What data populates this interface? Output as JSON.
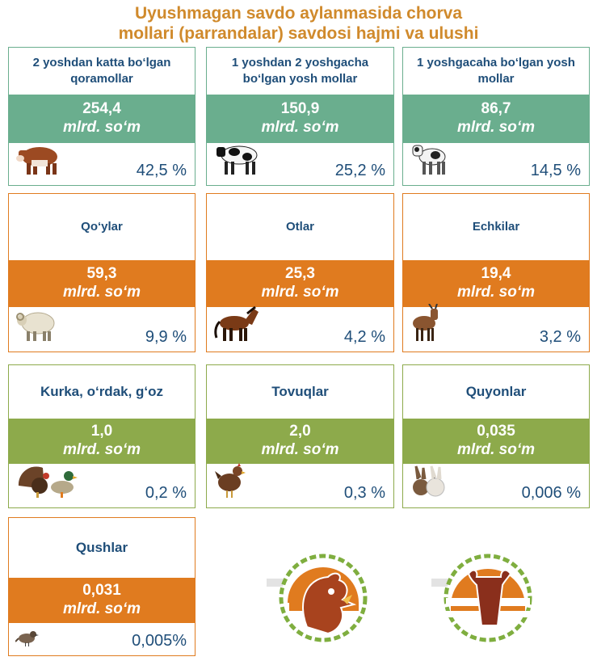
{
  "title_line1": "Uyushmagan savdo aylanmasida chorva",
  "title_line2": "mollari (parrandalar) savdosi hajmi va ulushi",
  "chart_data": {
    "type": "table",
    "unit": "mlrd. so‘m",
    "rows": [
      {
        "label": "2 yoshdan katta bo‘lgan qoramollar",
        "value": "254,4",
        "share": "42,5 %",
        "icon": "bull-icon",
        "color": "#6aae8e"
      },
      {
        "label": "1 yoshdan 2 yoshgacha bo‘lgan yosh mollar",
        "value": "150,9",
        "share": "25,2 %",
        "icon": "cow-icon",
        "color": "#6aae8e"
      },
      {
        "label": "1 yoshgacaha bo‘lgan yosh mollar",
        "value": "86,7",
        "share": "14,5 %",
        "icon": "calf-icon",
        "color": "#6aae8e"
      },
      {
        "label": "Qo‘ylar",
        "value": "59,3",
        "share": "9,9 %",
        "icon": "sheep-icon",
        "color": "#e07b1f"
      },
      {
        "label": "Otlar",
        "value": "25,3",
        "share": "4,2 %",
        "icon": "horse-icon",
        "color": "#e07b1f"
      },
      {
        "label": "Echkilar",
        "value": "19,4",
        "share": "3,2 %",
        "icon": "goat-icon",
        "color": "#e07b1f"
      },
      {
        "label": "Kurka, o‘rdak, g‘oz",
        "value": "1,0",
        "share": "0,2 %",
        "icon": "turkey-duck-icon",
        "color": "#8daa4b"
      },
      {
        "label": "Tovuqlar",
        "value": "2,0",
        "share": "0,3 %",
        "icon": "hen-icon",
        "color": "#8daa4b"
      },
      {
        "label": "Quyonlar",
        "value": "0,035",
        "share": "0,006 %",
        "icon": "rabbit-icon",
        "color": "#8daa4b"
      },
      {
        "label": "Qushlar",
        "value": "0,031",
        "share": "0,005%",
        "icon": "bird-icon",
        "color": "#e07b1f"
      }
    ]
  },
  "logos": [
    "rooster-logo-icon",
    "bull-logo-icon"
  ]
}
